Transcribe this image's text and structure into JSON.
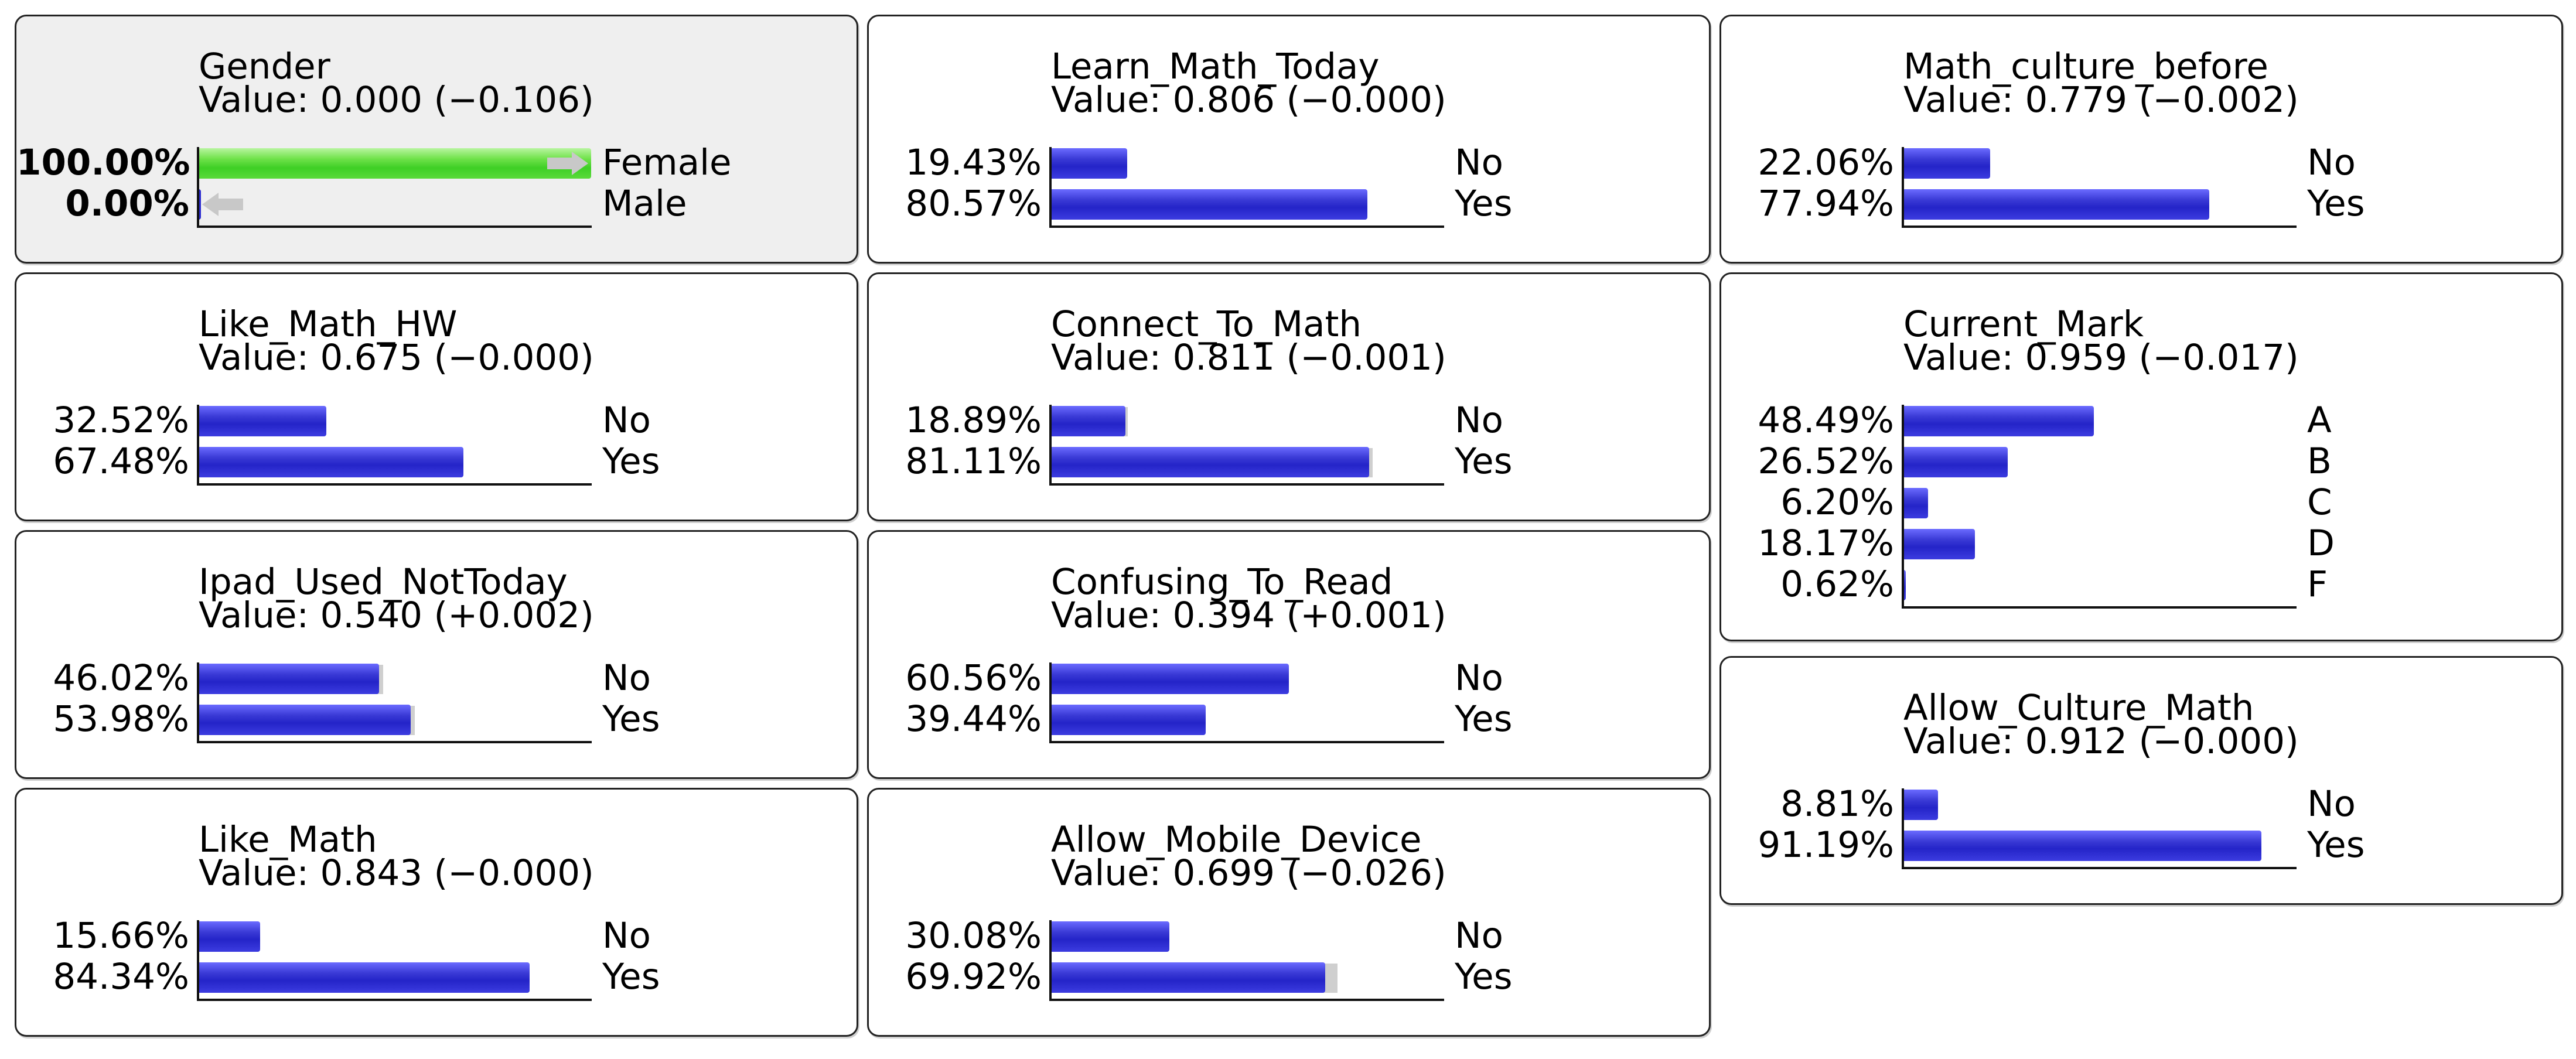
{
  "nodes": [
    {
      "name": "Gender",
      "value": "Value: 0.000 (−0.106)",
      "selected": true,
      "states": [
        {
          "pct": "100.00%",
          "label": "Female",
          "p": 1.0,
          "prior": 1.0,
          "bold": true,
          "color": "green"
        },
        {
          "pct": "0.00%",
          "label": "Male",
          "p": 0.0,
          "prior": 0.0,
          "bold": true,
          "color": "green"
        }
      ]
    },
    {
      "name": "Learn_Math_Today",
      "value": "Value: 0.806 (−0.000)",
      "states": [
        {
          "pct": "19.43%",
          "label": "No",
          "p": 0.1943,
          "prior": 0.1943
        },
        {
          "pct": "80.57%",
          "label": "Yes",
          "p": 0.8057,
          "prior": 0.8057
        }
      ]
    },
    {
      "name": "Math_culture_before",
      "value": "Value: 0.779 (−0.002)",
      "states": [
        {
          "pct": "22.06%",
          "label": "No",
          "p": 0.2206,
          "prior": 0.2206
        },
        {
          "pct": "77.94%",
          "label": "Yes",
          "p": 0.7794,
          "prior": 0.7794
        }
      ]
    },
    {
      "name": "Like_Math_HW",
      "value": "Value: 0.675 (−0.000)",
      "states": [
        {
          "pct": "32.52%",
          "label": "No",
          "p": 0.3252,
          "prior": 0.3252
        },
        {
          "pct": "67.48%",
          "label": "Yes",
          "p": 0.6748,
          "prior": 0.6748
        }
      ]
    },
    {
      "name": "Connect_To_Math",
      "value": "Value: 0.811 (−0.001)",
      "states": [
        {
          "pct": "18.89%",
          "label": "No",
          "p": 0.1889,
          "prior": 0.195
        },
        {
          "pct": "81.11%",
          "label": "Yes",
          "p": 0.8111,
          "prior": 0.82
        }
      ]
    },
    {
      "name": "Current_Mark",
      "value": "Value: 0.959 (−0.017)",
      "states": [
        {
          "pct": "48.49%",
          "label": "A",
          "p": 0.4849,
          "prior": 0.4849
        },
        {
          "pct": "26.52%",
          "label": "B",
          "p": 0.2652,
          "prior": 0.2652
        },
        {
          "pct": "6.20%",
          "label": "C",
          "p": 0.062,
          "prior": 0.062
        },
        {
          "pct": "18.17%",
          "label": "D",
          "p": 0.1817,
          "prior": 0.1817
        },
        {
          "pct": "0.62%",
          "label": "F",
          "p": 0.0062,
          "prior": 0.0062
        }
      ]
    },
    {
      "name": "Ipad_Used_NotToday",
      "value": "Value: 0.540 (+0.002)",
      "states": [
        {
          "pct": "46.02%",
          "label": "No",
          "p": 0.4602,
          "prior": 0.47
        },
        {
          "pct": "53.98%",
          "label": "Yes",
          "p": 0.5398,
          "prior": 0.55
        }
      ]
    },
    {
      "name": "Confusing_To_Read",
      "value": "Value: 0.394 (+0.001)",
      "states": [
        {
          "pct": "60.56%",
          "label": "No",
          "p": 0.6056,
          "prior": 0.6056
        },
        {
          "pct": "39.44%",
          "label": "Yes",
          "p": 0.3944,
          "prior": 0.3944
        }
      ]
    },
    {
      "name": "Allow_Culture_Math",
      "value": "Value: 0.912 (−0.000)",
      "states": [
        {
          "pct": "8.81%",
          "label": "No",
          "p": 0.0881,
          "prior": 0.0881
        },
        {
          "pct": "91.19%",
          "label": "Yes",
          "p": 0.9119,
          "prior": 0.9119
        }
      ]
    },
    {
      "name": "Like_Math",
      "value": "Value: 0.843 (−0.000)",
      "states": [
        {
          "pct": "15.66%",
          "label": "No",
          "p": 0.1566,
          "prior": 0.1566
        },
        {
          "pct": "84.34%",
          "label": "Yes",
          "p": 0.8434,
          "prior": 0.8434
        }
      ]
    },
    {
      "name": "Allow_Mobile_Device",
      "value": "Value: 0.699 (−0.026)",
      "states": [
        {
          "pct": "30.08%",
          "label": "No",
          "p": 0.3008,
          "prior": 0.3
        },
        {
          "pct": "69.92%",
          "label": "Yes",
          "p": 0.6992,
          "prior": 0.73
        }
      ]
    }
  ],
  "colors": {
    "bar": "#2a2ad0",
    "evidence": "#4cd832",
    "ghost": "#cfcfcf"
  }
}
